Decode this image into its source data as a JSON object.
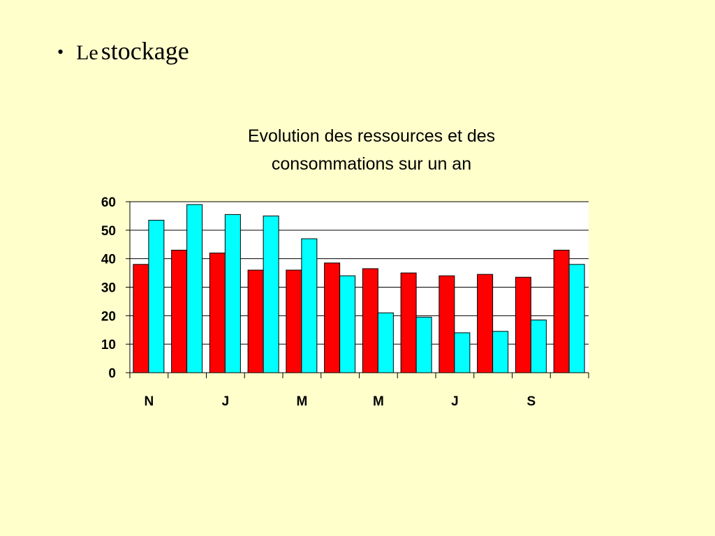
{
  "slide": {
    "bullet": "•",
    "heading_small": "Le",
    "heading_large": "stockage"
  },
  "chart_data": {
    "type": "bar",
    "title_lines": [
      "Evolution des ressources et des",
      "consommations sur un an"
    ],
    "xlabel": "",
    "ylabel": "",
    "ylim": [
      0,
      60
    ],
    "yticks": [
      0,
      10,
      20,
      30,
      40,
      50,
      60
    ],
    "grid": true,
    "legend": "none",
    "categories": [
      "N",
      "",
      "J",
      "",
      "M",
      "",
      "M",
      "",
      "J",
      "",
      "S",
      ""
    ],
    "series": [
      {
        "color": "#ff0000",
        "values": [
          38,
          43,
          42,
          36,
          36,
          38.5,
          36.5,
          35,
          34,
          34.5,
          33.5,
          43
        ]
      },
      {
        "color": "#00ffff",
        "values": [
          53.5,
          59,
          55.5,
          55,
          47,
          34,
          21,
          19.5,
          14,
          14.5,
          18.5,
          38
        ]
      }
    ],
    "plot_background": "#ffffff",
    "gridline_color": "#000000"
  }
}
